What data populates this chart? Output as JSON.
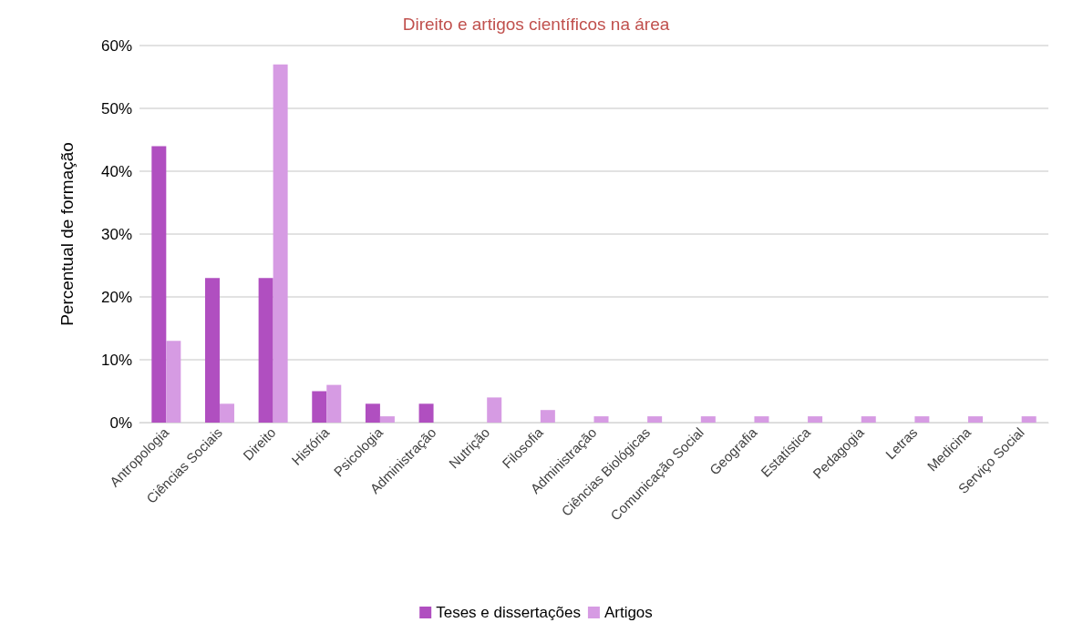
{
  "chart_data": {
    "type": "bar",
    "title": "Direito e artigos científicos na área",
    "ylabel": "Percentual de formação",
    "categories": [
      "Antropologia",
      "Ciências Sociais",
      "Direito",
      "História",
      "Psicologia",
      "Administração",
      "Nutrição",
      "Filosofia",
      "Administração",
      "Ciências Biológicas",
      "Comunicação Social",
      "Geografia",
      "Estatística",
      "Pedagogia",
      "Letras",
      "Medicina",
      "Serviço Social"
    ],
    "series": [
      {
        "name": "Teses e dissertações",
        "color": "#b04fc0",
        "values": [
          44,
          23,
          23,
          5,
          3,
          3,
          0,
          0,
          0,
          0,
          0,
          0,
          0,
          0,
          0,
          0,
          0
        ]
      },
      {
        "name": "Artigos",
        "color": "#d69be3",
        "values": [
          13,
          3,
          57,
          6,
          1,
          0,
          4,
          2,
          1,
          1,
          1,
          1,
          1,
          1,
          1,
          1,
          1
        ]
      }
    ],
    "ylim": [
      0,
      60
    ],
    "yticks": [
      {
        "value": 0,
        "label": "0%"
      },
      {
        "value": 10,
        "label": "10%"
      },
      {
        "value": 20,
        "label": "20%"
      },
      {
        "value": 30,
        "label": "30%"
      },
      {
        "value": 40,
        "label": "40%"
      },
      {
        "value": 50,
        "label": "50%"
      },
      {
        "value": 60,
        "label": "60%"
      }
    ],
    "grid": true,
    "legend": "bottom"
  }
}
